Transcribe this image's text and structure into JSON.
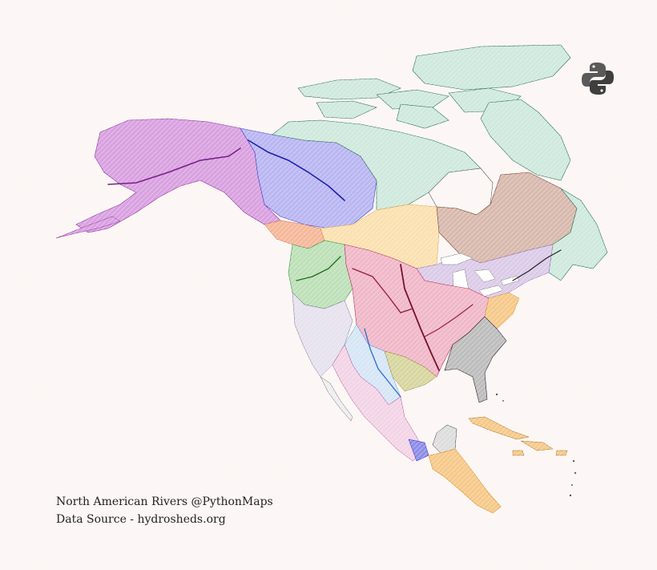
{
  "caption": {
    "line1": "North American Rivers @PythonMaps",
    "line2": "Data Source - hydrosheds.org"
  },
  "logo": {
    "icon": "python-logo-icon",
    "color": "#5a5a5a"
  },
  "colors": {
    "background": "#fcf6f4",
    "arctic": "#5fbf9c",
    "yukon": "#b54cc4",
    "mackenzie": "#4343e0",
    "hudson_bay": "#6bbf8e",
    "nelson": "#f2c96b",
    "st_lawrence_labrador": "#9c6e5f",
    "great_lakes": "#b79bd3",
    "mississippi": "#d64f79",
    "atlantic": "#333333",
    "columbia": "#4b9b4b",
    "gulf_west": "#a7a33a",
    "caribbean_central": "#f0a23a"
  }
}
